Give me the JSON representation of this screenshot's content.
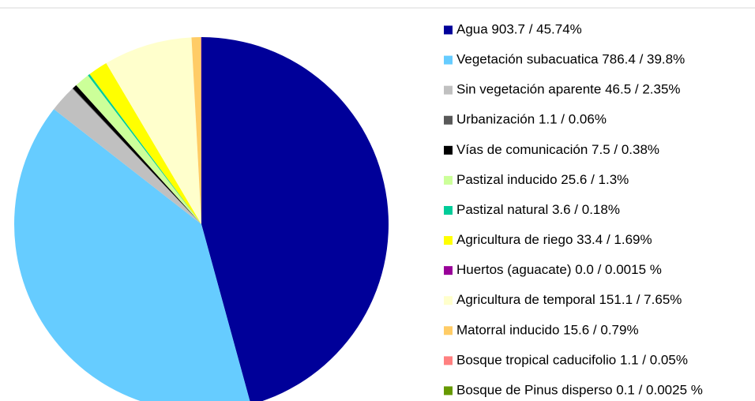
{
  "chart_data": {
    "type": "pie",
    "categories": [
      "Agua 903.7 / 45.74%",
      "Vegetación subacuatica 786.4 / 39.8%",
      "Sin vegetación aparente 46.5 / 2.35%",
      "Urbanización 1.1 / 0.06%",
      "Vías de comunicación 7.5 / 0.38%",
      "Pastizal inducido 25.6 / 1.3%",
      "Pastizal natural 3.6 / 0.18%",
      "Agricultura de riego 33.4 / 1.69%",
      "Huertos (aguacate) 0.0 / 0.0015 %",
      "Agricultura de temporal 151.1 / 7.65%",
      "Matorral inducido 15.6 / 0.79%",
      "Bosque tropical caducifolio 1.1 / 0.05%",
      "Bosque de Pinus disperso 0.1 / 0.0025 %"
    ],
    "values": [
      45.74,
      39.8,
      2.35,
      0.06,
      0.38,
      1.3,
      0.18,
      1.69,
      0.0015,
      7.65,
      0.79,
      0.05,
      0.0025
    ],
    "colors": [
      "#000099",
      "#66ccff",
      "#c0c0c0",
      "#595959",
      "#000000",
      "#ccff99",
      "#00cc99",
      "#ffff00",
      "#990099",
      "#ffffcc",
      "#ffcc66",
      "#ff8080",
      "#669900"
    ],
    "legend": "right"
  }
}
